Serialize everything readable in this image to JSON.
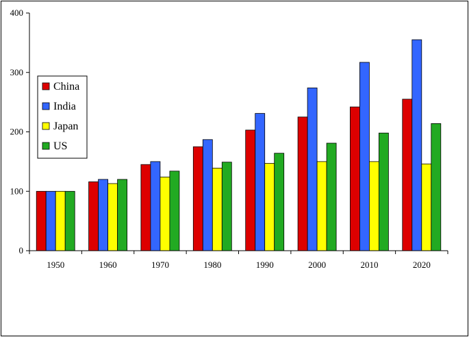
{
  "chart_data": {
    "type": "bar",
    "title": "",
    "xlabel": "",
    "ylabel": "",
    "categories": [
      "1950",
      "1960",
      "1970",
      "1980",
      "1990",
      "2000",
      "2010",
      "2020"
    ],
    "series": [
      {
        "name": "China",
        "color": "#dd0000",
        "values": [
          100,
          116,
          145,
          175,
          203,
          225,
          242,
          255
        ]
      },
      {
        "name": "India",
        "color": "#3366ff",
        "values": [
          100,
          120,
          150,
          187,
          231,
          274,
          317,
          355
        ]
      },
      {
        "name": "Japan",
        "color": "#ffff00",
        "values": [
          100,
          113,
          124,
          139,
          147,
          150,
          150,
          146
        ]
      },
      {
        "name": "US",
        "color": "#22aa22",
        "values": [
          100,
          120,
          134,
          149,
          164,
          181,
          198,
          214
        ]
      }
    ],
    "ylim": [
      0,
      400
    ],
    "yticks": [
      "0",
      "100",
      "200",
      "300",
      "400"
    ],
    "grid": false,
    "legend_position": "left"
  }
}
